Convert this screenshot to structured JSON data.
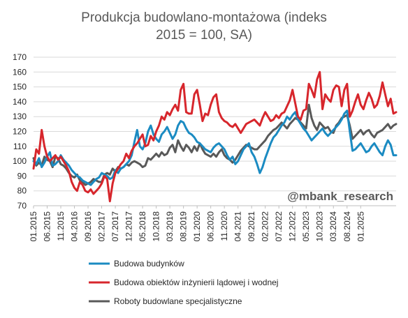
{
  "chart_data": {
    "type": "line",
    "title_line1": "Produkcja budowlano-montażowa (indeks",
    "title_line2": "2015 = 100, SA)",
    "watermark": "@mbank_research",
    "ylim": [
      70,
      170
    ],
    "yticks": [
      70,
      80,
      90,
      100,
      110,
      120,
      130,
      140,
      150,
      160,
      170
    ],
    "grid": "horizontal",
    "legend_position": "bottom",
    "start": "2015-01",
    "xticks": [
      "01.2015",
      "06.2015",
      "11.2015",
      "04.2016",
      "09.2016",
      "02.2017",
      "07.2017",
      "12.2017",
      "05.2018",
      "10.2018",
      "03.2019",
      "08.2019",
      "01.2020",
      "06.2020",
      "11.2020",
      "04.2021",
      "09.2021",
      "02.2022",
      "07.2022",
      "12.2022",
      "05.2023",
      "10.2023",
      "03.2024",
      "08.2024",
      "01.2025"
    ],
    "series": [
      {
        "name": "Budowa budynków",
        "color": "#1b8bc2",
        "values": [
          100,
          98,
          102,
          96,
          99,
          103,
          106,
          97,
          98,
          100,
          104,
          101,
          99,
          97,
          94,
          92,
          90,
          89,
          87,
          86,
          85,
          84,
          86,
          88,
          89,
          92,
          91,
          90,
          88,
          89,
          94,
          92,
          95,
          96,
          98,
          100,
          104,
          113,
          121,
          110,
          108,
          112,
          120,
          124,
          118,
          115,
          113,
          118,
          120,
          123,
          119,
          115,
          118,
          124,
          127,
          126,
          122,
          119,
          118,
          116,
          113,
          112,
          110,
          108,
          107,
          106,
          109,
          111,
          112,
          110,
          108,
          104,
          101,
          103,
          98,
          100,
          104,
          108,
          110,
          112,
          106,
          103,
          98,
          92,
          96,
          102,
          107,
          112,
          116,
          118,
          121,
          124,
          126,
          130,
          128,
          131,
          133,
          128,
          125,
          122,
          120,
          117,
          114,
          116,
          118,
          120,
          122,
          119,
          117,
          119,
          121,
          123,
          125,
          128,
          132,
          134,
          120,
          107,
          108,
          110,
          112,
          109,
          106,
          107,
          110,
          112,
          109,
          106,
          104,
          110,
          114,
          111,
          104,
          104
        ]
      },
      {
        "name": "Budowa obiektów inżynierii lądowej i wodnej",
        "color": "#d7262c",
        "values": [
          95,
          108,
          105,
          121,
          110,
          103,
          100,
          102,
          104,
          101,
          103,
          100,
          97,
          93,
          86,
          82,
          80,
          86,
          84,
          80,
          79,
          81,
          78,
          80,
          82,
          85,
          90,
          88,
          73,
          85,
          92,
          95,
          98,
          100,
          105,
          102,
          107,
          110,
          112,
          115,
          118,
          110,
          111,
          117,
          114,
          120,
          124,
          130,
          128,
          133,
          131,
          135,
          138,
          134,
          148,
          152,
          133,
          132,
          132,
          145,
          148,
          138,
          127,
          132,
          131,
          138,
          143,
          145,
          133,
          129,
          127,
          126,
          124,
          123,
          125,
          122,
          119,
          122,
          125,
          126,
          127,
          128,
          126,
          124,
          129,
          133,
          130,
          127,
          128,
          131,
          129,
          132,
          133,
          137,
          141,
          148,
          139,
          130,
          128,
          134,
          135,
          152,
          148,
          143,
          155,
          160,
          135,
          145,
          142,
          140,
          148,
          151,
          150,
          137,
          148,
          152,
          130,
          134,
          140,
          145,
          138,
          135,
          141,
          146,
          142,
          136,
          138,
          144,
          153,
          145,
          137,
          142,
          132,
          133
        ]
      },
      {
        "name": "Roboty budowlane specjalistyczne",
        "color": "#595959",
        "values": [
          102,
          97,
          99,
          97,
          103,
          101,
          100,
          96,
          103,
          102,
          98,
          97,
          95,
          92,
          90,
          89,
          91,
          87,
          86,
          84,
          85,
          86,
          88,
          87,
          86,
          86,
          91,
          92,
          91,
          95,
          93,
          96,
          95,
          96,
          98,
          97,
          99,
          100,
          99,
          98,
          96,
          97,
          102,
          101,
          103,
          105,
          103,
          106,
          104,
          105,
          109,
          111,
          106,
          114,
          110,
          107,
          111,
          109,
          106,
          110,
          107,
          112,
          108,
          105,
          104,
          103,
          105,
          103,
          106,
          108,
          104,
          102,
          101,
          99,
          101,
          104,
          107,
          109,
          111,
          110,
          109,
          108,
          108,
          110,
          112,
          114,
          117,
          119,
          121,
          122,
          124,
          126,
          124,
          122,
          125,
          127,
          129,
          128,
          126,
          124,
          122,
          138,
          129,
          124,
          121,
          126,
          124,
          122,
          123,
          120,
          119,
          124,
          126,
          129,
          130,
          131,
          124,
          115,
          117,
          119,
          121,
          118,
          120,
          121,
          118,
          116,
          119,
          120,
          121,
          123,
          125,
          122,
          124,
          125
        ]
      }
    ]
  }
}
